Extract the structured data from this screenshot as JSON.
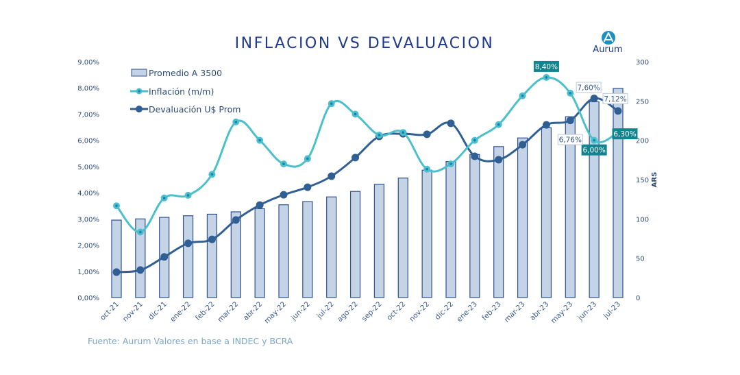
{
  "header": {
    "title": "INFLACION VS DEVALUACION",
    "logo_text": "Aurum"
  },
  "footer": {
    "source": "Fuente: Aurum Valores en base a INDEC y BCRA"
  },
  "colors": {
    "title": "#1f3a8a",
    "bar_fill": "#c5d3e6",
    "bar_stroke": "#2f4f8a",
    "inflation": "#4bbfcc",
    "inflation_marker_dot": "#1a7fb0",
    "devaluation": "#2f5f93",
    "label_box_teal": "#12848f",
    "label_box_white": "#ffffff",
    "source_text": "#7aa6c6",
    "logo_circle": "#1f8fc0"
  },
  "chart_data": {
    "type": "bar+line",
    "title": "INFLACION VS DEVALUACION",
    "xlabel": "",
    "ylabel_left": "",
    "ylabel_right": "ARS",
    "categories": [
      "oct-21",
      "nov-21",
      "dic-21",
      "ene-22",
      "feb-22",
      "mar-22",
      "abr-22",
      "may-22",
      "jun-22",
      "jul-22",
      "ago-22",
      "sep-22",
      "oct-22",
      "nov-22",
      "dic-22",
      "ene-23",
      "feb-23",
      "mar-23",
      "abr-23",
      "may-23",
      "jun-23",
      "jul-23"
    ],
    "y_left": {
      "range": [
        0,
        9
      ],
      "ticks": [
        "0,00%",
        "1,00%",
        "2,00%",
        "3,00%",
        "4,00%",
        "5,00%",
        "6,00%",
        "7,00%",
        "8,00%",
        "9,00%"
      ]
    },
    "y_right": {
      "range": [
        0,
        300
      ],
      "ticks": [
        "0",
        "50",
        "100",
        "150",
        "200",
        "250",
        "300"
      ],
      "label": "ARS"
    },
    "grid": false,
    "legend": {
      "position": "top-left",
      "entries": [
        "Promedio A 3500",
        "Inflación (m/m)",
        "Devaluación U$ Prom"
      ]
    },
    "series": [
      {
        "name": "Promedio A 3500",
        "type": "bar",
        "axis": "right",
        "values": [
          98.5,
          100,
          102,
          104,
          106,
          109,
          113,
          118,
          122,
          128,
          135,
          144,
          152,
          162,
          173,
          182,
          192,
          203,
          216,
          230,
          249,
          266
        ]
      },
      {
        "name": "Inflación (m/m)",
        "type": "line",
        "axis": "left",
        "values": [
          3.5,
          2.5,
          3.8,
          3.9,
          4.7,
          6.7,
          6.0,
          5.1,
          5.3,
          7.4,
          7.0,
          6.2,
          6.3,
          4.9,
          5.1,
          6.0,
          6.6,
          7.7,
          8.4,
          7.8,
          6.0,
          6.3
        ]
      },
      {
        "name": "Devaluación U$ Prom",
        "type": "line",
        "axis": "left",
        "values": [
          0.97,
          1.05,
          1.55,
          2.07,
          2.22,
          2.96,
          3.53,
          3.92,
          4.21,
          4.63,
          5.34,
          6.15,
          6.25,
          6.23,
          6.65,
          5.39,
          5.26,
          5.83,
          6.59,
          6.76,
          7.6,
          7.12
        ]
      }
    ],
    "annotations": [
      {
        "series": "Inflación (m/m)",
        "category": "abr-23",
        "text": "8,40%",
        "style": "teal"
      },
      {
        "series": "Inflación (m/m)",
        "category": "jun-23",
        "text": "6,00%",
        "style": "teal"
      },
      {
        "series": "Inflación (m/m)",
        "category": "jul-23",
        "text": "6,30%",
        "style": "teal"
      },
      {
        "series": "Devaluación U$ Prom",
        "category": "may-23",
        "text": "6,76%",
        "style": "white"
      },
      {
        "series": "Devaluación U$ Prom",
        "category": "jun-23",
        "text": "7,60%",
        "style": "white"
      },
      {
        "series": "Devaluación U$ Prom",
        "category": "jul-23",
        "text": "7,12%",
        "style": "white"
      }
    ]
  }
}
